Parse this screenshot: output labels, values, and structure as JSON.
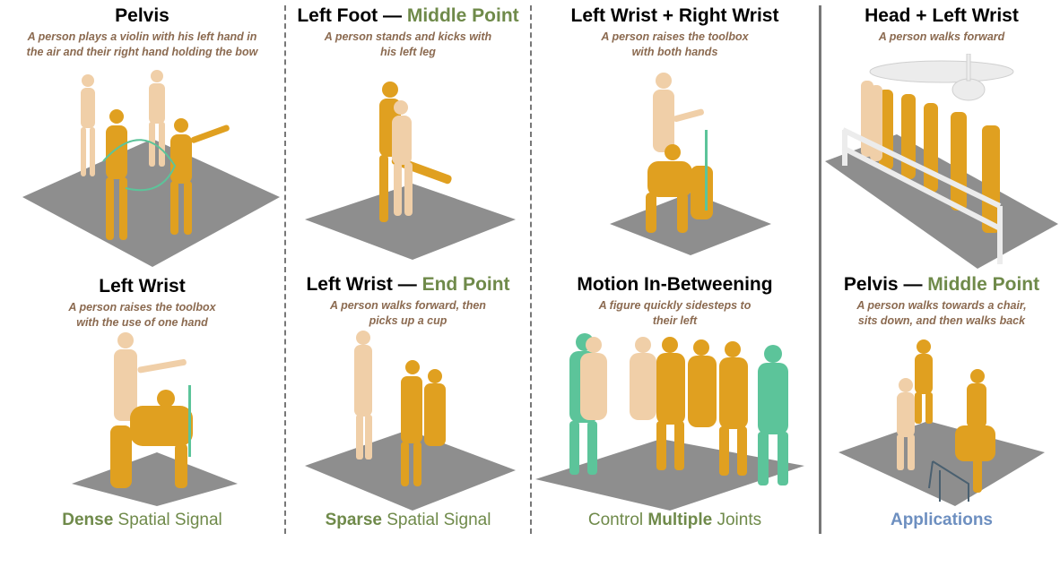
{
  "panels": [
    {
      "title": "Pelvis",
      "title_accent": "",
      "caption": "A person plays a violin with his left hand in\nthe air and their right hand holding the bow"
    },
    {
      "title": "Left Foot — ",
      "title_accent": "Middle Point",
      "caption": "A person stands and kicks with\nhis left leg"
    },
    {
      "title": "Left Wrist + Right Wrist",
      "title_accent": "",
      "caption": "A person raises the toolbox\nwith both hands"
    },
    {
      "title": "Head + Left Wrist",
      "title_accent": "",
      "caption": "A person walks forward"
    },
    {
      "title": "Left Wrist",
      "title_accent": "",
      "caption": "A person raises the toolbox\nwith the use of one hand"
    },
    {
      "title": "Left Wrist — ",
      "title_accent": "End Point",
      "caption": "A person walks forward, then\npicks up a cup"
    },
    {
      "title": "Motion In-Betweening",
      "title_accent": "",
      "caption": "A figure quickly sidesteps to\ntheir left"
    },
    {
      "title": "Pelvis — ",
      "title_accent": "Middle Point",
      "caption": "A person walks towards a chair,\nsits down, and then walks back"
    }
  ],
  "footers": [
    {
      "bold": "Dense",
      "rest": " Spatial Signal"
    },
    {
      "bold": "Sparse",
      "rest": " Spatial Signal"
    },
    {
      "pre": "Control ",
      "bold": "Multiple",
      "rest": " Joints"
    },
    {
      "label": "Applications"
    }
  ],
  "colors": {
    "green": "#6f8a4a",
    "caption": "#8b6a50",
    "blue": "#6d8fc0",
    "figure_orange": "#e0a020",
    "figure_pale": "#f0cfa8",
    "figure_teal": "#5cc49a",
    "floor": "#8e8e8e"
  }
}
